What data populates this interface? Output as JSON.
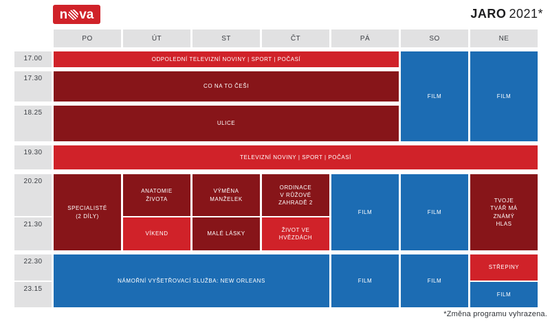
{
  "title": {
    "season": "JARO",
    "year": "2021*"
  },
  "logo": {
    "n": "n",
    "va": "va"
  },
  "days": [
    "PO",
    "ÚT",
    "ST",
    "ČT",
    "PÁ",
    "SO",
    "NE"
  ],
  "times": [
    "17.00",
    "17.30",
    "18.25",
    "19.30",
    "20.20",
    "21.30",
    "22.30",
    "23.15"
  ],
  "programs": {
    "odpoledni_televizni_noviny": "ODPOLEDNÍ TELEVIZNÍ NOVINY | SPORT | POČASÍ",
    "co_na_to_cesi": "CO NA TO ČEŠI",
    "ulice": "ULICE",
    "televizni_noviny": "TELEVIZNÍ NOVINY | SPORT | POČASÍ",
    "specialiste": "SPECIALISTÉ\n(2 DÍLY)",
    "anatomie_zivota": "ANATOMIE\nŽIVOTA",
    "vymena_manzelek": "VÝMĚNA\nMANŽELEK",
    "ordinace": "ORDINACE\nV RŮŽOVÉ\nZAHRADĚ 2",
    "vikend": "VÍKEND",
    "male_lasky": "MALÉ LÁSKY",
    "zivot_ve_hvezdach": "ŽIVOT VE\nHVĚZDÁCH",
    "tvoje_tvar": "TVOJE\nTVÁŘ MÁ\nZNÁMÝ\nHLAS",
    "ncis": "NÁMOŘNÍ VYŠETŘOVACÍ SLUŽBA: NEW ORLEANS",
    "strepiny": "STŘEPINY",
    "film": "FILM"
  },
  "colors": {
    "bright_red": "#d02229",
    "dark_red": "#871519",
    "blue": "#1c6cb3",
    "cell_gray": "#e1e1e2"
  },
  "footnote": "*Změna programu vyhrazena."
}
